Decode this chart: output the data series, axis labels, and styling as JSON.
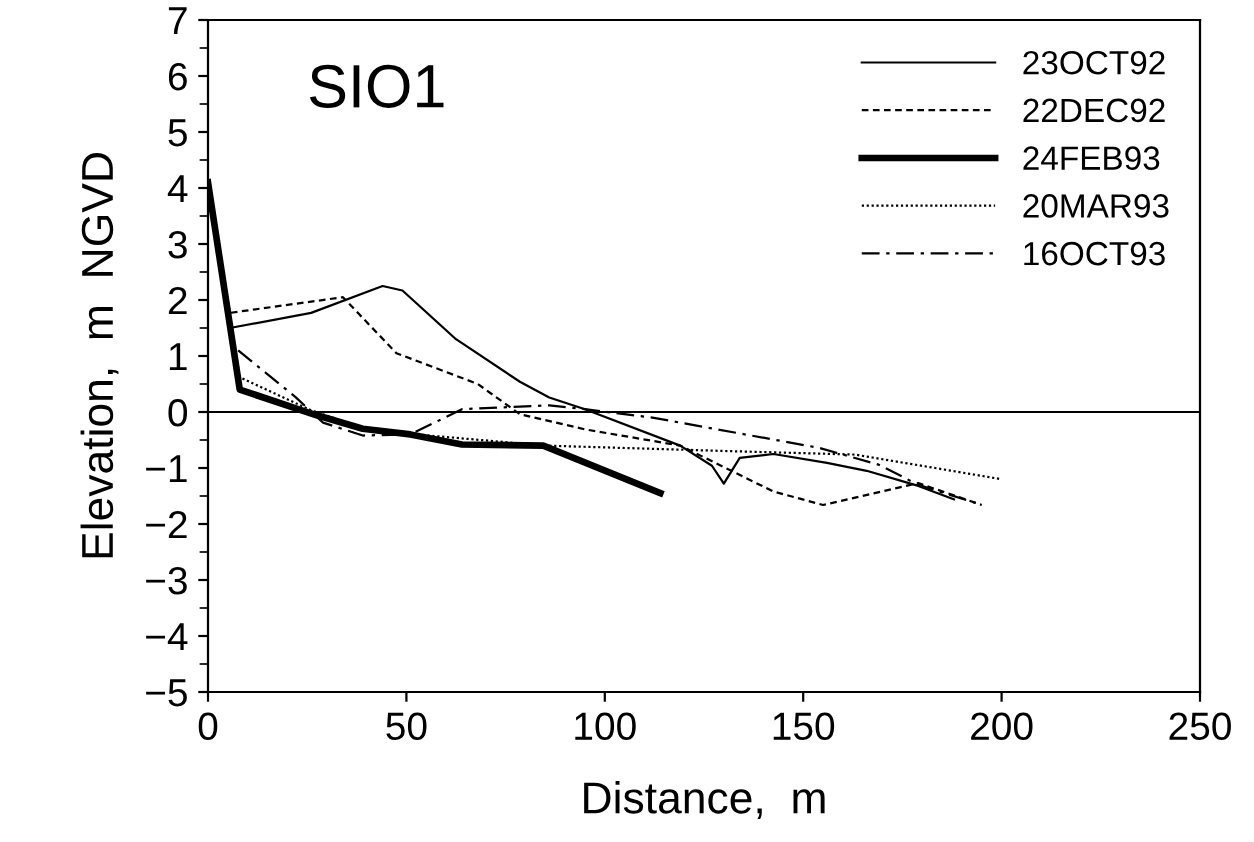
{
  "chart_data": {
    "type": "line",
    "title": "SIO1",
    "xlabel": "Distance,  m",
    "ylabel": "Elevation,  m  NGVD",
    "xlim": [
      0,
      250
    ],
    "xticks": [
      0,
      50,
      100,
      150,
      200,
      250
    ],
    "ylim": [
      -5,
      7
    ],
    "yticks": [
      {
        "value": -5,
        "label": "−5"
      },
      {
        "value": -4,
        "label": "−4"
      },
      {
        "value": -3,
        "label": "−3"
      },
      {
        "value": -2,
        "label": "−2"
      },
      {
        "value": -1,
        "label": "−1"
      },
      0,
      1,
      2,
      3,
      4,
      5,
      6,
      7
    ],
    "grid": false,
    "legend": "top right",
    "marker": "none",
    "ref_lines": [
      {
        "axis": "y",
        "value": 0,
        "color": "#000000",
        "line_style": "solid"
      }
    ],
    "series": [
      {
        "name": "23OCT92",
        "color": "#000000",
        "line_style": "solid",
        "x": [
          0,
          5.5,
          26,
          44,
          49,
          62.5,
          78.6,
          86,
          95,
          119,
          127,
          130,
          134,
          142.5,
          156,
          166,
          179,
          188
        ],
        "values": [
          4.1,
          1.5,
          1.77,
          2.25,
          2.17,
          1.3,
          0.54,
          0.26,
          0.05,
          -0.6,
          -0.96,
          -1.28,
          -0.82,
          -0.75,
          -0.91,
          -1.05,
          -1.32,
          -1.56
        ]
      },
      {
        "name": "22DEC92",
        "color": "#000000",
        "line_style": "dashed",
        "x": [
          0,
          5.5,
          34,
          47.5,
          68,
          78.6,
          95,
          119,
          142.5,
          155,
          179,
          195
        ],
        "values": [
          4.1,
          1.77,
          2.05,
          1.05,
          0.5,
          -0.04,
          -0.31,
          -0.6,
          -1.42,
          -1.66,
          -1.27,
          -1.66
        ]
      },
      {
        "name": "24FEB93",
        "color": "#000000",
        "line_style": "solid",
        "x": [
          0,
          8,
          27,
          39,
          51,
          64,
          84.5,
          114
        ],
        "values": [
          4.1,
          0.4,
          -0.05,
          -0.3,
          -0.4,
          -0.58,
          -0.6,
          -1.45
        ]
      },
      {
        "name": "20MAR93",
        "color": "#000000",
        "line_style": "dotted",
        "x": [
          0,
          8,
          26,
          41,
          85,
          132,
          163,
          200
        ],
        "values": [
          4.1,
          0.62,
          0.03,
          -0.33,
          -0.6,
          -0.7,
          -0.76,
          -1.2
        ]
      },
      {
        "name": "16OCT93",
        "color": "#000000",
        "line_style": "dashdot",
        "x": [
          0,
          6.4,
          22,
          29,
          39,
          51,
          64,
          86,
          95,
          112,
          154,
          169,
          179,
          195
        ],
        "values": [
          4.1,
          1.17,
          0.27,
          -0.19,
          -0.42,
          -0.4,
          0.05,
          0.12,
          0.05,
          -0.1,
          -0.64,
          -0.94,
          -1.3,
          -1.66
        ]
      }
    ]
  }
}
